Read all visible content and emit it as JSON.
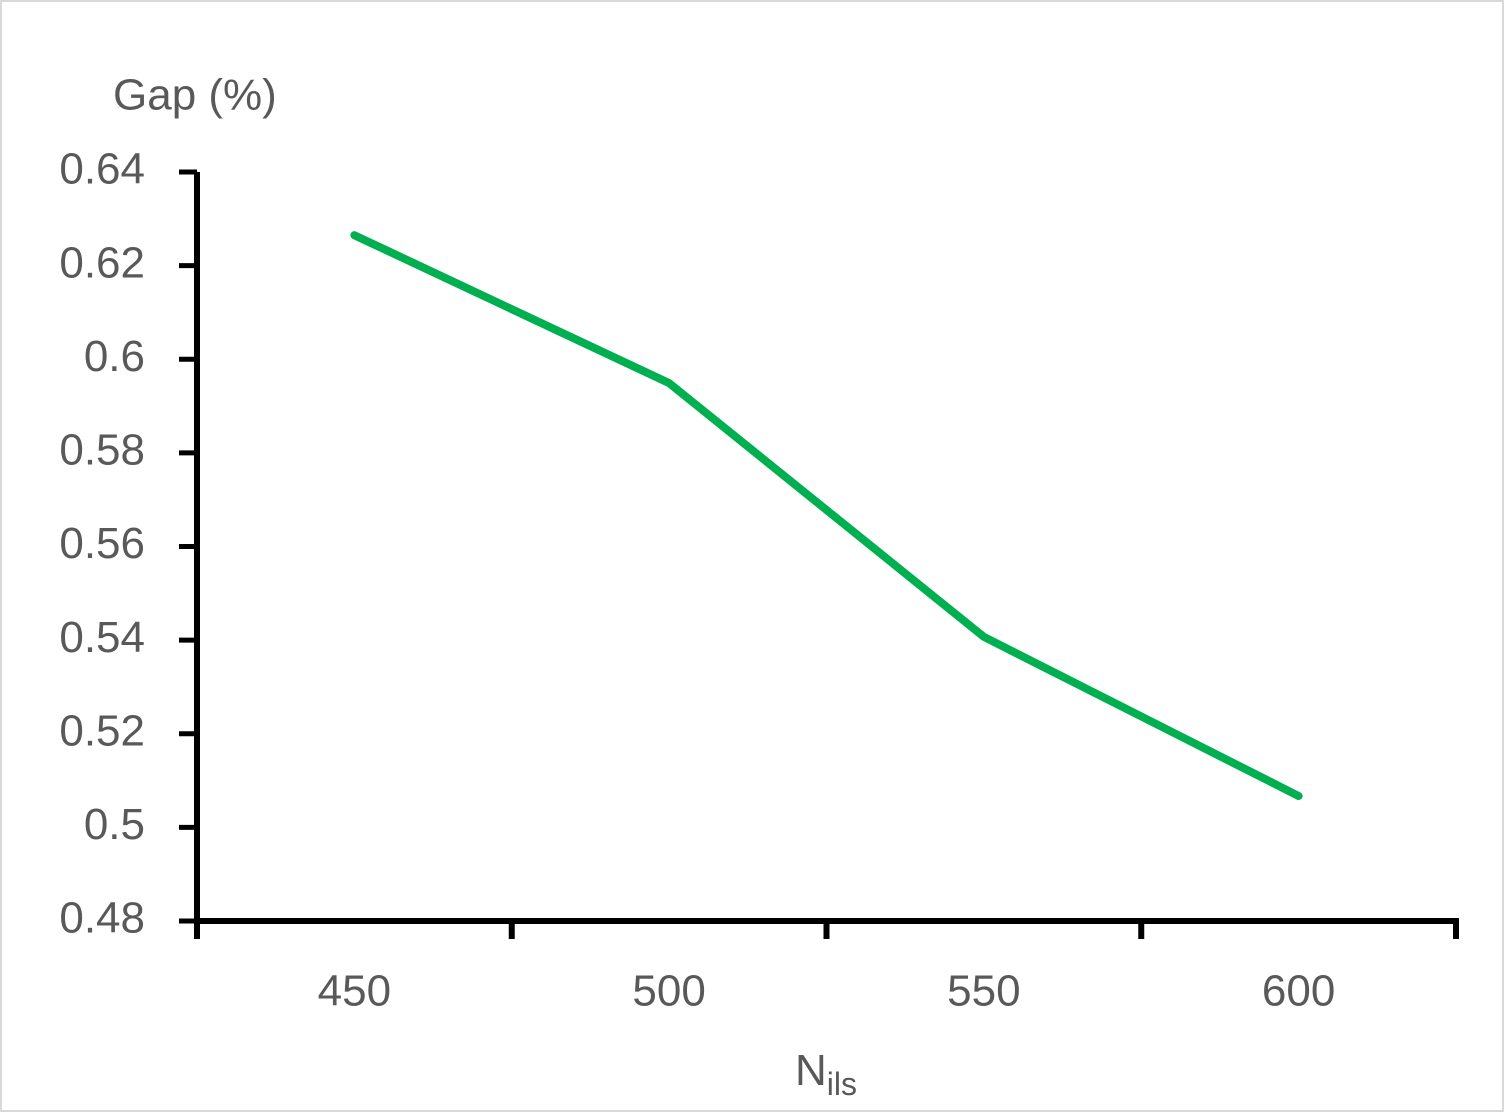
{
  "chart_data": {
    "type": "line",
    "y_label": "Gap (%)",
    "x_label": "N",
    "x_label_subscript": "ils",
    "categories": [
      450,
      500,
      550,
      600
    ],
    "series": [
      {
        "color": "#00b050",
        "values": [
          0.6265,
          0.5949,
          0.5407,
          0.5067
        ]
      }
    ],
    "ylim": [
      0.48,
      0.64
    ],
    "yticks": [
      0.48,
      0.5,
      0.52,
      0.54,
      0.56,
      0.58,
      0.6,
      0.62,
      0.64
    ],
    "grid": false
  }
}
